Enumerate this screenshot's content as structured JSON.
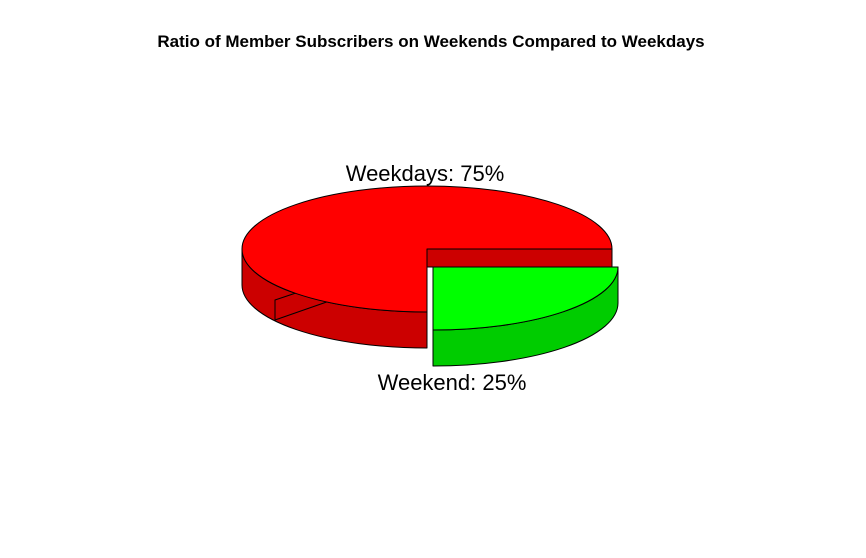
{
  "chart_data": {
    "type": "pie",
    "title": "Ratio of Member Subscribers on Weekends Compared to Weekdays",
    "categories": [
      "Weekdays",
      "Weekend"
    ],
    "values": [
      75,
      25
    ],
    "labels": [
      "Weekdays: 75%",
      "Weekend: 25%"
    ],
    "colors": {
      "Weekdays": {
        "top": "#FF0000",
        "side": "#CC0000"
      },
      "Weekend": {
        "top": "#00FF00",
        "side": "#00CC00"
      }
    },
    "style": "3d",
    "exploded": "Weekend",
    "legend": "none"
  }
}
